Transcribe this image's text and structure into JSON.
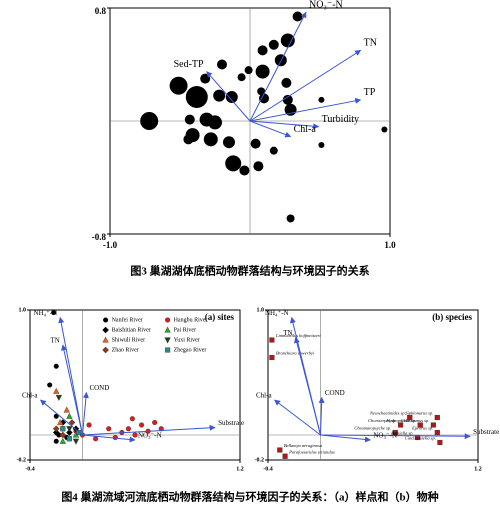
{
  "captions": [
    "图3  巢湖湖体底栖动物群落结构与环境因子的关系",
    "图4  巢湖流域河流底栖动物群落结构与环境因子的关系：（a）样点和（b）物种"
  ],
  "chart_data": [
    {
      "type": "bubble",
      "xlim": [
        -1,
        1
      ],
      "ylim": [
        -0.8,
        0.8
      ],
      "xticks": [
        {
          "value": -1,
          "label": "-1.0"
        },
        {
          "value": 1,
          "label": "1.0"
        }
      ],
      "yticks": [
        {
          "value": -0.8,
          "label": "-0.8"
        },
        {
          "value": 0.8,
          "label": "0.8"
        }
      ],
      "vector_color": "#3a56d4",
      "vectors": [
        {
          "name": "NO₃⁻-N",
          "x": 0.4,
          "y": 0.77
        },
        {
          "name": "TN",
          "x": 0.79,
          "y": 0.5
        },
        {
          "name": "TP",
          "x": 0.79,
          "y": 0.15
        },
        {
          "name": "Turbidity",
          "x": 0.49,
          "y": -0.04
        },
        {
          "name": "Chl-a",
          "x": 0.29,
          "y": -0.11
        },
        {
          "name": "Sed-TP",
          "x": -0.31,
          "y": 0.35
        }
      ],
      "series": [
        {
          "color": "#000000",
          "x": [
            0.34,
            0.27,
            0.17,
            0.09,
            0.22,
            0.09,
            -0.01,
            -0.06,
            -0.2,
            -0.32,
            -0.51,
            -0.38,
            -0.22,
            -0.13,
            0.1,
            0.27,
            0.29,
            0.26,
            0.08,
            -0.72,
            -0.43,
            -0.31,
            -0.25,
            -0.41,
            -0.44,
            -0.28,
            -0.15,
            0.04,
            0.17,
            0.51,
            -0.12,
            -0.04,
            0.06,
            0.96,
            0.29,
            0.51
          ],
          "y": [
            0.74,
            0.57,
            0.54,
            0.5,
            0.43,
            0.35,
            0.36,
            0.31,
            0.4,
            0.3,
            0.25,
            0.17,
            0.18,
            0.17,
            0.16,
            0.15,
            0.08,
            0.27,
            0.21,
            0,
            0.01,
            0.01,
            -0.01,
            -0.1,
            -0.13,
            -0.13,
            -0.15,
            -0.16,
            -0.21,
            -0.17,
            -0.3,
            -0.35,
            -0.32,
            -0.06,
            -0.69,
            0.15
          ],
          "sizes": [
            5,
            7,
            5,
            5,
            6,
            7,
            4,
            4,
            5,
            5,
            9,
            11,
            6,
            6,
            5,
            5,
            6,
            5,
            4,
            9,
            5,
            7,
            7,
            7,
            5,
            7,
            6,
            5,
            4,
            3,
            8,
            5,
            5,
            3,
            4,
            3
          ]
        }
      ]
    },
    {
      "type": "scatter",
      "title": "(a) sites",
      "xlim": [
        -0.4,
        1.2
      ],
      "ylim": [
        -0.2,
        1
      ],
      "xticks": [
        -0.4,
        1.2
      ],
      "yticks": [
        -0.2,
        {
          "value": 1,
          "label": "1.0"
        }
      ],
      "legend": "top",
      "vector_color": "#3a56d4",
      "vectors": [
        {
          "name": "NH₄⁺-N",
          "x": -0.17,
          "y": 0.94
        },
        {
          "name": "TN",
          "x": -0.15,
          "y": 0.72
        },
        {
          "name": "Chl-a",
          "x": -0.32,
          "y": 0.28
        },
        {
          "name": "COND",
          "x": 0.03,
          "y": 0.34
        },
        {
          "name": "Substrate",
          "x": 1.01,
          "y": 0.06
        },
        {
          "name": "NO₃⁻-N",
          "x": 0.4,
          "y": -0.04
        }
      ],
      "series": [
        {
          "name": "Nanfei River",
          "color": "#000000",
          "marker": "circle",
          "x": [
            -0.22,
            -0.2,
            -0.25,
            -0.2,
            -0.15,
            -0.18,
            -0.12,
            -0.2
          ],
          "y": [
            0.98,
            0.55,
            0.4,
            0.15,
            0.05,
            0,
            -0.02,
            -0.05
          ]
        },
        {
          "name": "Hangbu River",
          "color": "#d42020",
          "marker": "circle",
          "x": [
            0.3,
            0.35,
            0.4,
            0.45,
            0.5,
            0.55,
            0.6,
            0.25,
            0.2,
            0,
            -0.05,
            0.1,
            0.05,
            0.38
          ],
          "y": [
            0.02,
            0.05,
            0,
            0.08,
            0.03,
            0.1,
            0.05,
            -0.02,
            0.05,
            0,
            0.03,
            -0.03,
            0.08,
            0.13
          ]
        },
        {
          "name": "Baishitian River",
          "color": "#000000",
          "marker": "diamond",
          "x": [
            -0.15,
            -0.1,
            -0.2,
            -0.05
          ],
          "y": [
            0.1,
            0.02,
            0.02,
            0.05
          ]
        },
        {
          "name": "Pai River",
          "color": "#2ca02c",
          "marker": "triangle",
          "x": [
            -0.1,
            -0.05,
            -0.15
          ],
          "y": [
            0.15,
            0,
            -0.05
          ]
        },
        {
          "name": "Shiwuli River",
          "color": "#e06020",
          "marker": "triangle",
          "x": [
            -0.2,
            -0.12,
            -0.17
          ],
          "y": [
            0.35,
            0.2,
            0.1
          ]
        },
        {
          "name": "Yuxi River",
          "color": "#1f3d1f",
          "marker": "triangle-down",
          "x": [
            -0.18,
            -0.1,
            -0.05
          ],
          "y": [
            0.3,
            0.05,
            -0.05
          ]
        },
        {
          "name": "Zhao River",
          "color": "#8b3a1a",
          "marker": "diamond",
          "x": [
            -0.2,
            -0.15,
            -0.08
          ],
          "y": [
            0.05,
            0,
            0.1
          ]
        },
        {
          "name": "Zhegao River",
          "color": "#2a8a8a",
          "marker": "square",
          "x": [
            -0.1,
            -0.03,
            -0.15
          ],
          "y": [
            -0.03,
            0.02,
            0.05
          ]
        }
      ]
    },
    {
      "type": "scatter",
      "title": "(b) species",
      "xlim": [
        -0.4,
        1.2
      ],
      "ylim": [
        -0.2,
        1
      ],
      "xticks": [
        -0.4,
        1.2
      ],
      "yticks": [
        -0.2,
        {
          "value": 1,
          "label": "1.0"
        }
      ],
      "vector_color": "#3a56d4",
      "vectors": [
        {
          "name": "NH₄⁺-N",
          "x": -0.22,
          "y": 0.94
        },
        {
          "name": "TN",
          "x": -0.19,
          "y": 0.78
        },
        {
          "name": "Chl-a",
          "x": -0.35,
          "y": 0.28
        },
        {
          "name": "COND",
          "x": 0.01,
          "y": 0.3
        },
        {
          "name": "Substrate",
          "x": 1.14,
          "y": -0.01
        },
        {
          "name": "NO₃⁻-N",
          "x": 0.38,
          "y": -0.04
        }
      ],
      "series": [
        {
          "color": "#b01818",
          "marker": "square",
          "x": [
            -0.37,
            -0.37,
            0.68,
            0.89,
            0.61,
            0.76,
            0.57,
            0.74,
            0.89,
            0.91,
            0.86,
            -0.31,
            -0.27
          ],
          "y": [
            0.76,
            0.62,
            0.14,
            0.14,
            0.08,
            0.08,
            0.02,
            -0.02,
            0.02,
            -0.06,
            0.08,
            -0.12,
            -0.17
          ],
          "point_labels": [
            "Limnodrilus hoffmeisteri",
            "Branchiura sowerbyi",
            "Nesochaetinides sp.",
            "Siphlonurus sp.",
            "Choroterpes sp.",
            "Hydropsyche sp.",
            "Cheumatopsyche sp.",
            "Baetiella sp.",
            "Epeorus sp.",
            "Cinclicostella sp.",
            "Chironomus sp.",
            "Bellamya aeruginosa",
            "Parafossarulus striatulus"
          ]
        }
      ]
    }
  ]
}
